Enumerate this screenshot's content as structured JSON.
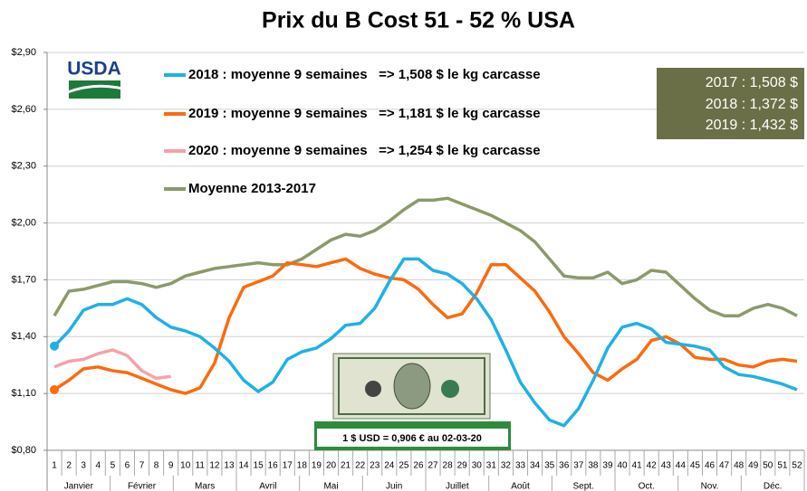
{
  "chart_data": {
    "type": "line",
    "title": "Prix du B Cost 51 - 52 % USA",
    "logo": "USDA",
    "categories": [
      "1",
      "2",
      "3",
      "4",
      "5",
      "6",
      "7",
      "8",
      "9",
      "10",
      "11",
      "12",
      "13",
      "14",
      "15",
      "16",
      "17",
      "18",
      "19",
      "20",
      "21",
      "22",
      "23",
      "24",
      "25",
      "26",
      "27",
      "28",
      "29",
      "30",
      "31",
      "32",
      "33",
      "34",
      "35",
      "36",
      "37",
      "38",
      "39",
      "40",
      "41",
      "42",
      "43",
      "44",
      "45",
      "46",
      "47",
      "48",
      "49",
      "50",
      "51",
      "52"
    ],
    "months": [
      "Janvier",
      "Février",
      "Mars",
      "Avril",
      "Mai",
      "Juin",
      "Juillet",
      "Août",
      "Sept.",
      "Oct.",
      "Nov.",
      "Déc."
    ],
    "series": [
      {
        "name": "2018 : moyenne 9 semaines   => 1,508 $ le kg carcasse",
        "color": "#1fb1e6",
        "values": [
          1.35,
          1.43,
          1.54,
          1.57,
          1.57,
          1.6,
          1.57,
          1.5,
          1.45,
          1.43,
          1.4,
          1.34,
          1.27,
          1.17,
          1.11,
          1.16,
          1.28,
          1.32,
          1.34,
          1.39,
          1.46,
          1.47,
          1.55,
          1.69,
          1.81,
          1.81,
          1.75,
          1.73,
          1.68,
          1.6,
          1.49,
          1.33,
          1.16,
          1.05,
          0.96,
          0.93,
          1.02,
          1.17,
          1.34,
          1.45,
          1.47,
          1.44,
          1.37,
          1.36,
          1.35,
          1.33,
          1.24,
          1.2,
          1.19,
          1.17,
          1.15,
          1.12
        ]
      },
      {
        "name": "2019 : moyenne 9 semaines   => 1,181 $ le kg carcasse",
        "color": "#fb6b0e",
        "values": [
          1.12,
          1.17,
          1.23,
          1.24,
          1.22,
          1.21,
          1.18,
          1.15,
          1.12,
          1.1,
          1.13,
          1.26,
          1.5,
          1.66,
          1.69,
          1.72,
          1.79,
          1.78,
          1.77,
          1.79,
          1.81,
          1.76,
          1.73,
          1.71,
          1.7,
          1.65,
          1.57,
          1.5,
          1.52,
          1.63,
          1.78,
          1.78,
          1.71,
          1.64,
          1.53,
          1.4,
          1.31,
          1.21,
          1.17,
          1.23,
          1.28,
          1.38,
          1.4,
          1.36,
          1.29,
          1.28,
          1.28,
          1.25,
          1.24,
          1.27,
          1.28,
          1.27
        ]
      },
      {
        "name": "2020 : moyenne 9 semaines   => 1,254 $ le kg carcasse",
        "color": "#f5a2a9",
        "values": [
          1.24,
          1.27,
          1.28,
          1.31,
          1.33,
          1.3,
          1.22,
          1.18,
          1.19,
          null,
          null,
          null,
          null,
          null,
          null,
          null,
          null,
          null,
          null,
          null,
          null,
          null,
          null,
          null,
          null,
          null,
          null,
          null,
          null,
          null,
          null,
          null,
          null,
          null,
          null,
          null,
          null,
          null,
          null,
          null,
          null,
          null,
          null,
          null,
          null,
          null,
          null,
          null,
          null,
          null,
          null,
          null
        ]
      },
      {
        "name": "Moyenne 2013-2017",
        "color": "#8b9a6b",
        "values": [
          1.51,
          1.64,
          1.65,
          1.67,
          1.69,
          1.69,
          1.68,
          1.66,
          1.68,
          1.72,
          1.74,
          1.76,
          1.77,
          1.78,
          1.79,
          1.78,
          1.78,
          1.81,
          1.86,
          1.91,
          1.94,
          1.93,
          1.96,
          2.01,
          2.07,
          2.12,
          2.12,
          2.13,
          2.1,
          2.07,
          2.04,
          2.0,
          1.96,
          1.9,
          1.81,
          1.72,
          1.71,
          1.71,
          1.74,
          1.68,
          1.7,
          1.75,
          1.74,
          1.67,
          1.6,
          1.54,
          1.51,
          1.51,
          1.55,
          1.57,
          1.55,
          1.51
        ]
      }
    ],
    "ylim": [
      0.8,
      2.9
    ],
    "yticks": [
      {
        "value": 0.8,
        "label": "$0,80"
      },
      {
        "value": 1.1,
        "label": "$1,10"
      },
      {
        "value": 1.4,
        "label": "$1,40"
      },
      {
        "value": 1.7,
        "label": "$1,70"
      },
      {
        "value": 2.0,
        "label": "$2,00"
      },
      {
        "value": 2.3,
        "label": "$2,30"
      },
      {
        "value": 2.6,
        "label": "$2,60"
      },
      {
        "value": 2.9,
        "label": "$2,90"
      }
    ],
    "grid": true,
    "annotation_box": [
      "2017 : 1,508 $",
      "2018 : 1,372 $",
      "2019 : 1,432 $"
    ],
    "exchange_note": "1 $ USD = 0,906 € au 02-03-20"
  }
}
